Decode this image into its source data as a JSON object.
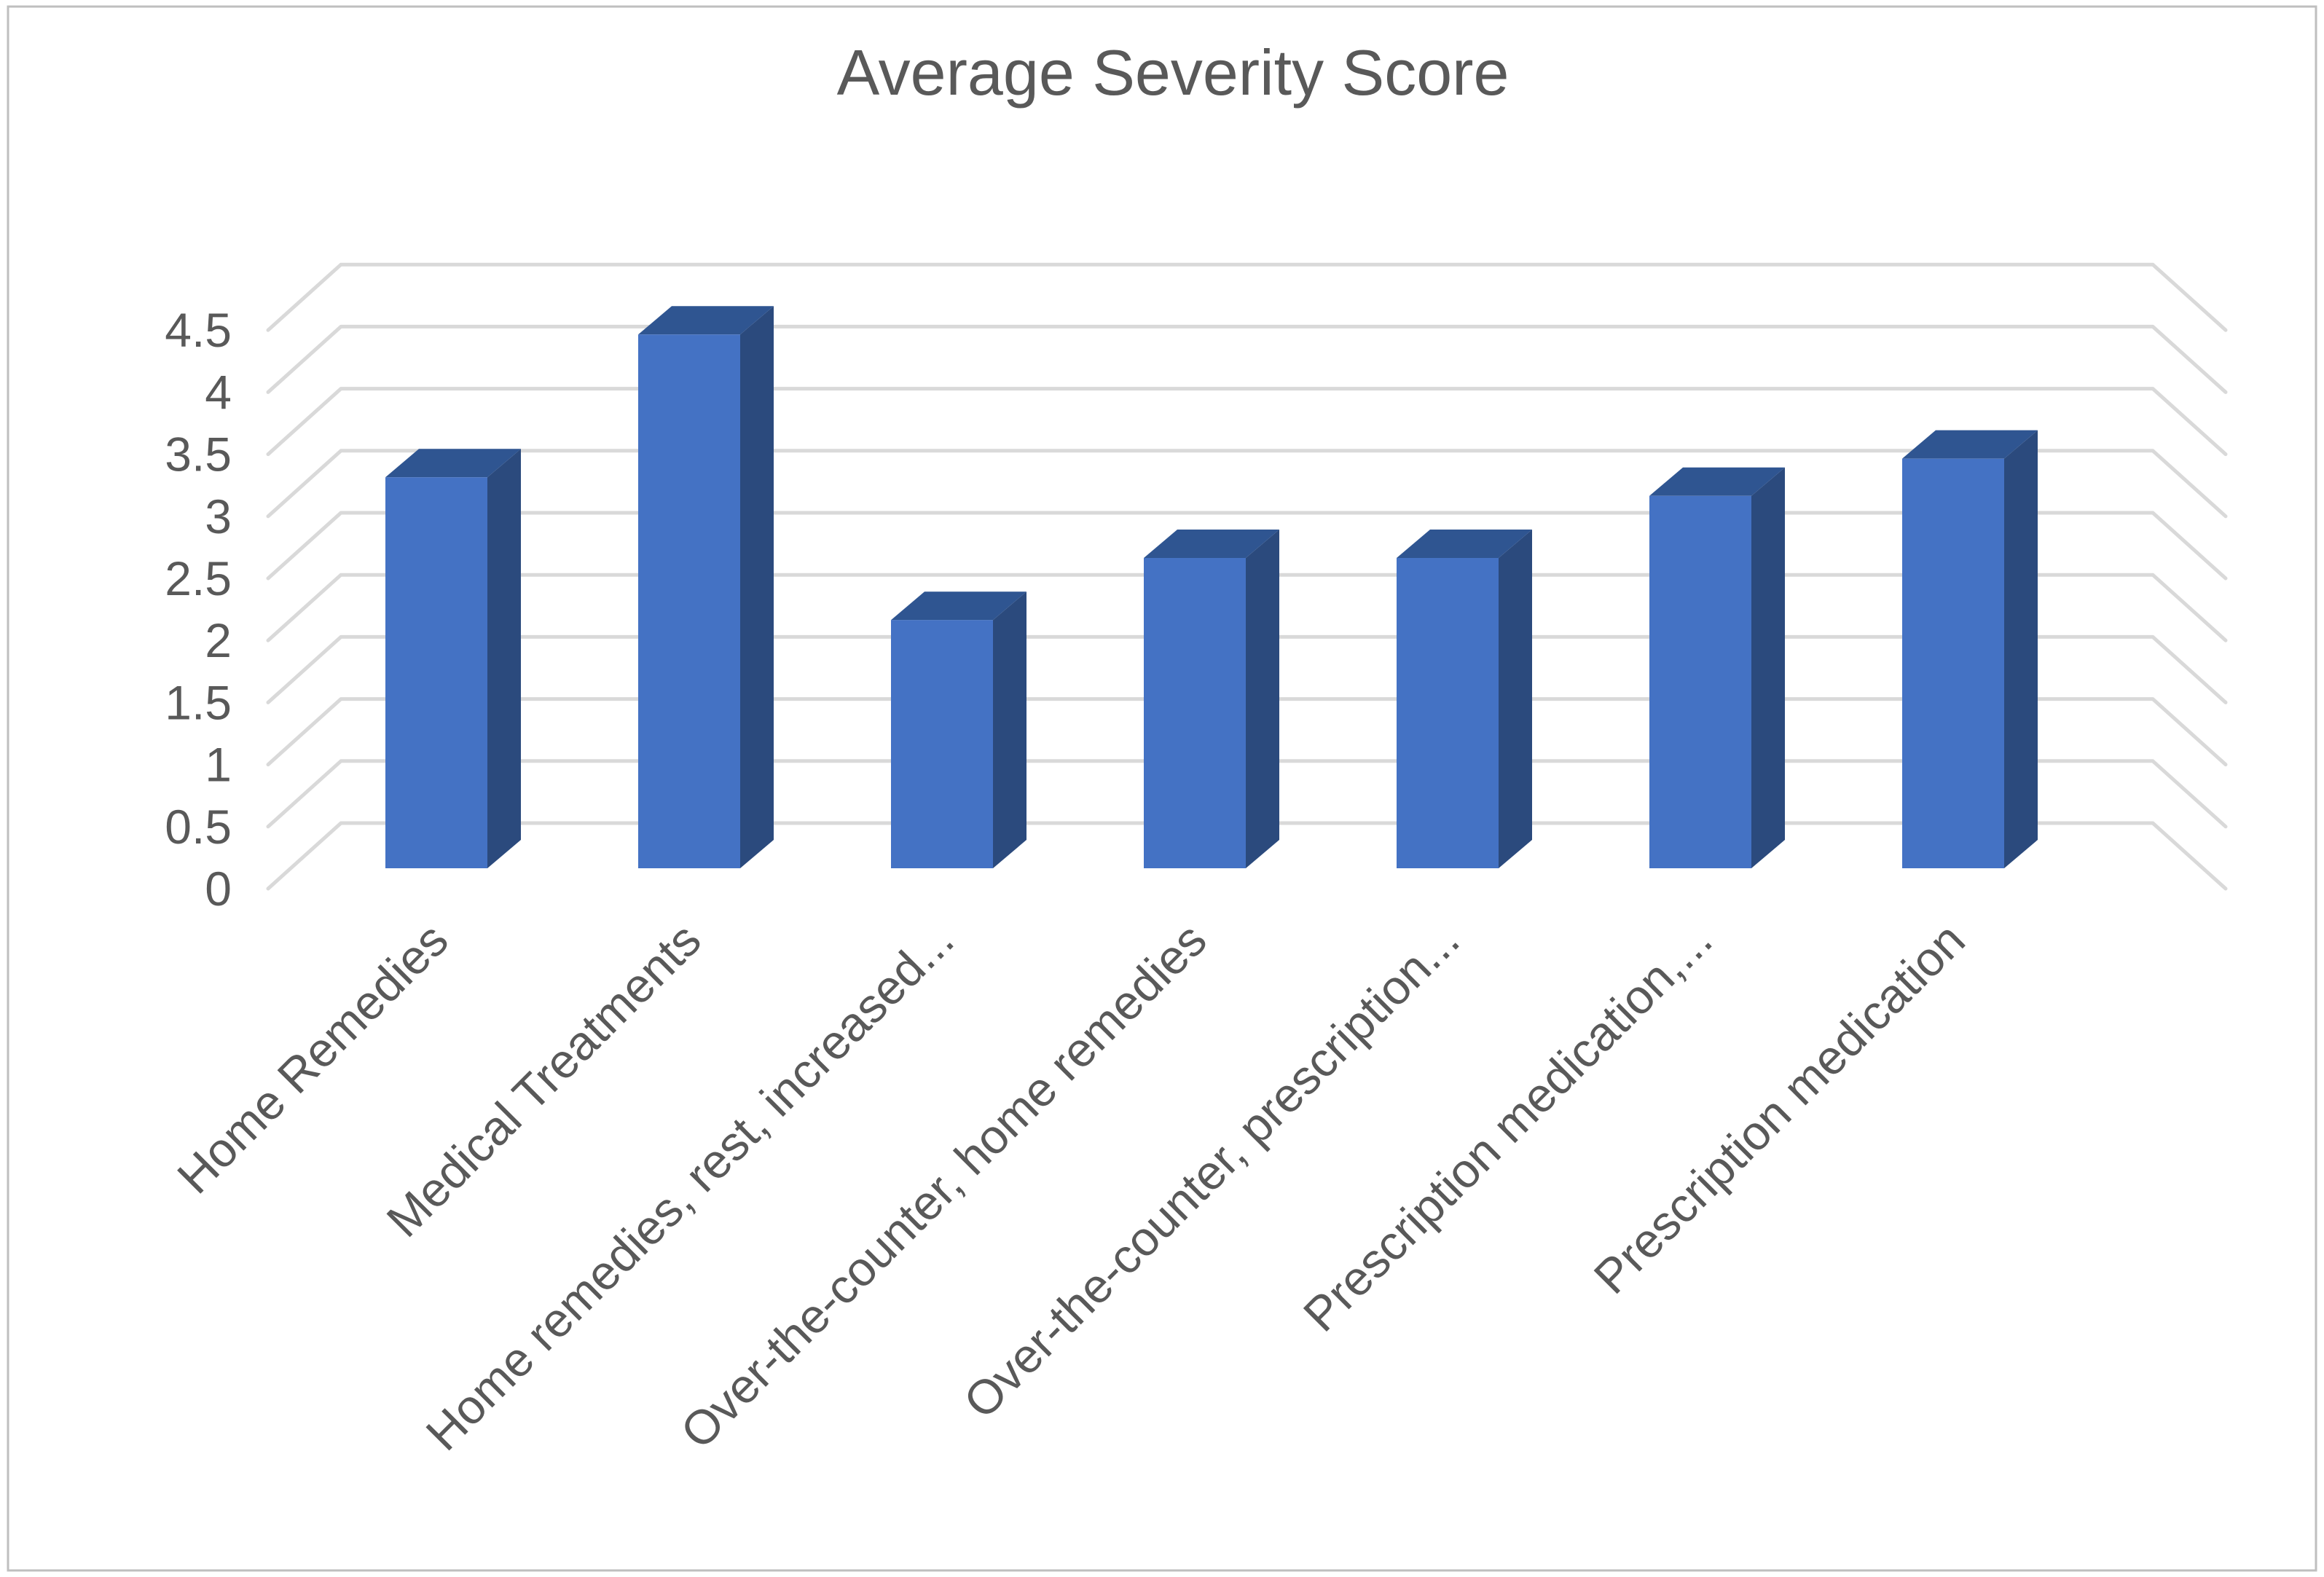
{
  "title": "Average Severity Score",
  "chart_data": {
    "type": "bar",
    "subtype": "3d-column",
    "title": "Average Severity Score",
    "series_name": "Average Severity Score",
    "categories": [
      "Home Remedies",
      "Medical Treatments",
      "Home remedies, rest, increased...",
      "Over-the-counter, home remedies",
      "Over-the-counter, prescription...",
      "Prescription medication,...",
      "Prescription medication"
    ],
    "values": [
      3.15,
      4.3,
      2.0,
      2.5,
      2.5,
      3.0,
      3.3
    ],
    "ylim": [
      0,
      4.5
    ],
    "ytick_step": 0.5,
    "ytick_labels": [
      "0",
      "0.5",
      "1",
      "1.5",
      "2",
      "2.5",
      "3",
      "3.5",
      "4",
      "4.5"
    ],
    "xlabel": "",
    "ylabel": "",
    "legend": "none",
    "grid": true,
    "colors": {
      "bar_front": "#4472C4",
      "bar_top": "#2F5591",
      "bar_side": "#2B4A7D",
      "gridline": "#D9D9D9",
      "text": "#595959",
      "title_text": "#595959",
      "border": "#BFBFBF",
      "background": "#FFFFFF"
    }
  }
}
